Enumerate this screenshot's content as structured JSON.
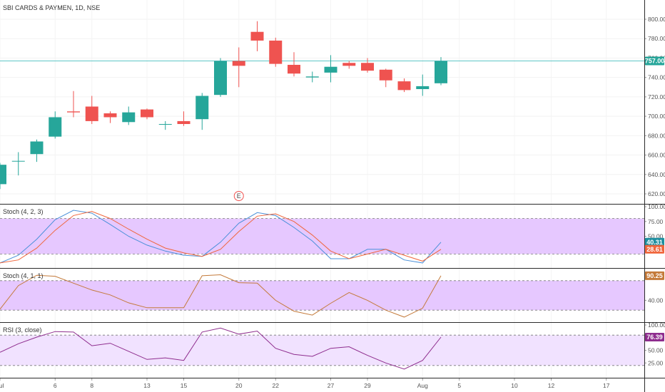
{
  "colors": {
    "up": "#26a69a",
    "down": "#ef5350",
    "stoch_k": "#4a90d9",
    "stoch_d": "#f0663c",
    "stoch_single": "#c47a3a",
    "rsi": "#8e2d8e",
    "band_fill": "#e6c8ff",
    "band_fill_light": "#f1e2ff",
    "hline": "#5fc6c6",
    "badge_stoch_k": "#1e8fa0",
    "badge_stoch_d": "#f0663c",
    "badge_stoch2": "#c47a3a",
    "badge_rsi": "#8e2d8e"
  },
  "chart_data": [
    {
      "type": "candlestick",
      "title": "SBI CARDS & PAYMEN, 1D, NSE",
      "ylim": [
        610,
        810
      ],
      "yticks": [
        "620.00",
        "640.00",
        "660.00",
        "680.00",
        "700.00",
        "720.00",
        "740.00",
        "760.00",
        "780.00",
        "800.00"
      ],
      "ytick_values": [
        620,
        640,
        660,
        680,
        700,
        720,
        740,
        760,
        780,
        800
      ],
      "last_price_label": "757.00",
      "last_price": 757,
      "event_marker": "E",
      "event_slot": 13,
      "xticks": [
        {
          "slot": 0,
          "label": "Jul"
        },
        {
          "slot": 3,
          "label": "6"
        },
        {
          "slot": 5,
          "label": "8"
        },
        {
          "slot": 8,
          "label": "13"
        },
        {
          "slot": 10,
          "label": "15"
        },
        {
          "slot": 13,
          "label": "20"
        },
        {
          "slot": 15,
          "label": "22"
        },
        {
          "slot": 18,
          "label": "27"
        },
        {
          "slot": 20,
          "label": "29"
        },
        {
          "slot": 23,
          "label": "Aug"
        },
        {
          "slot": 25,
          "label": "5"
        },
        {
          "slot": 28,
          "label": "10"
        },
        {
          "slot": 30,
          "label": "12"
        },
        {
          "slot": 33,
          "label": "17"
        }
      ],
      "candles": [
        {
          "o": 630,
          "h": 652,
          "l": 625,
          "c": 650
        },
        {
          "o": 654,
          "h": 663,
          "l": 639,
          "c": 654
        },
        {
          "o": 661,
          "h": 676,
          "l": 653,
          "c": 674
        },
        {
          "o": 679,
          "h": 705,
          "l": 677,
          "c": 699
        },
        {
          "o": 705,
          "h": 726,
          "l": 699,
          "c": 704
        },
        {
          "o": 710,
          "h": 721,
          "l": 692,
          "c": 695
        },
        {
          "o": 703,
          "h": 705,
          "l": 693,
          "c": 699
        },
        {
          "o": 694,
          "h": 710,
          "l": 691,
          "c": 704
        },
        {
          "o": 707,
          "h": 708,
          "l": 697,
          "c": 699
        },
        {
          "o": 692,
          "h": 695,
          "l": 686,
          "c": 692
        },
        {
          "o": 695,
          "h": 705,
          "l": 690,
          "c": 692
        },
        {
          "o": 697,
          "h": 724,
          "l": 686,
          "c": 721
        },
        {
          "o": 722,
          "h": 760,
          "l": 720,
          "c": 757
        },
        {
          "o": 757,
          "h": 771,
          "l": 730,
          "c": 752
        },
        {
          "o": 787,
          "h": 798,
          "l": 767,
          "c": 778
        },
        {
          "o": 778,
          "h": 781,
          "l": 751,
          "c": 754
        },
        {
          "o": 753,
          "h": 766,
          "l": 741,
          "c": 744
        },
        {
          "o": 740,
          "h": 746,
          "l": 735,
          "c": 741
        },
        {
          "o": 745,
          "h": 763,
          "l": 735,
          "c": 751
        },
        {
          "o": 755,
          "h": 757,
          "l": 749,
          "c": 752
        },
        {
          "o": 755,
          "h": 760,
          "l": 745,
          "c": 747
        },
        {
          "o": 748,
          "h": 749,
          "l": 730,
          "c": 737
        },
        {
          "o": 736,
          "h": 739,
          "l": 725,
          "c": 727
        },
        {
          "o": 728,
          "h": 743,
          "l": 721,
          "c": 731
        },
        {
          "o": 734,
          "h": 761,
          "l": 732,
          "c": 757
        }
      ]
    },
    {
      "type": "line",
      "title": "Stoch (4, 2, 3)",
      "ylim": [
        0,
        100
      ],
      "yticks": [
        "100.00",
        "75.00",
        "50.00",
        "25.00"
      ],
      "ytick_values": [
        100,
        75,
        50,
        25
      ],
      "band": [
        20,
        80
      ],
      "series": [
        {
          "name": "K",
          "values": [
            5,
            18,
            45,
            78,
            94,
            89,
            70,
            50,
            35,
            25,
            18,
            16,
            40,
            72,
            90,
            85,
            65,
            42,
            12,
            12,
            28,
            28,
            10,
            5,
            40
          ]
        },
        {
          "name": "D",
          "values": [
            5,
            10,
            30,
            60,
            85,
            92,
            80,
            62,
            45,
            30,
            22,
            16,
            28,
            58,
            84,
            88,
            75,
            52,
            25,
            12,
            20,
            28,
            18,
            8,
            28
          ]
        }
      ],
      "badges": [
        "40.31",
        "28.61"
      ]
    },
    {
      "type": "line",
      "title": "Stoch (4, 1, 1)",
      "ylim": [
        0,
        100
      ],
      "yticks": [
        "40.00"
      ],
      "ytick_values": [
        40
      ],
      "band": [
        20,
        80
      ],
      "series": [
        {
          "name": "K",
          "values": [
            22,
            70,
            91,
            89,
            75,
            61,
            51,
            35,
            25,
            25,
            25,
            90,
            92,
            76,
            75,
            40,
            18,
            10,
            34,
            56,
            40,
            20,
            6,
            24,
            90
          ]
        }
      ],
      "badges": [
        "90.25"
      ]
    },
    {
      "type": "line",
      "title": "RSI (3, close)",
      "ylim": [
        0,
        100
      ],
      "yticks": [
        "100.00",
        "75.00",
        "50.00",
        "25.00"
      ],
      "ytick_values": [
        100,
        75,
        50,
        25
      ],
      "band": [
        20,
        80
      ],
      "series": [
        {
          "name": "RSI",
          "values": [
            46,
            63,
            76,
            87,
            86,
            59,
            64,
            48,
            32,
            35,
            30,
            86,
            94,
            82,
            88,
            54,
            42,
            38,
            54,
            57,
            40,
            25,
            13,
            30,
            76
          ]
        }
      ],
      "badges": [
        "76.39"
      ]
    }
  ]
}
